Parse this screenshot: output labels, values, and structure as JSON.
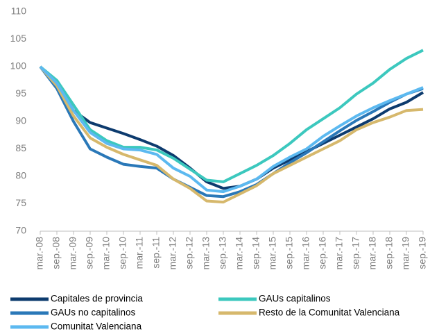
{
  "chart_data": {
    "type": "line",
    "categories": [
      "mar.-08",
      "sep.-08",
      "mar.-09",
      "sep.-09",
      "mar.-10",
      "sep.-10",
      "mar.-11",
      "sep.-11",
      "mar.-12",
      "sep.-12",
      "mar.-13",
      "sep.-13",
      "mar.-14",
      "sep.-14",
      "mar.-15",
      "sep.-15",
      "mar.-16",
      "sep.-16",
      "mar.-17",
      "sep.-17",
      "mar.-18",
      "sep.-18",
      "mar.-19",
      "sep.-19"
    ],
    "series": [
      {
        "name": "Capitales de provincia",
        "color": "#0d3b6e",
        "values": [
          100,
          97,
          92,
          89.8,
          88.8,
          87.8,
          86.7,
          85.5,
          83.8,
          81.5,
          79,
          77.8,
          78.2,
          79.5,
          81.5,
          83,
          84.5,
          86,
          87.5,
          89,
          90.5,
          92.3,
          93.5,
          95.3
        ]
      },
      {
        "name": "GAUs capitalinos",
        "color": "#3cc8be",
        "values": [
          100,
          97.5,
          93,
          88.5,
          86.5,
          85.3,
          85.3,
          84.8,
          83.3,
          81.3,
          79.3,
          79,
          80.5,
          82,
          83.8,
          86,
          88.5,
          90.5,
          92.5,
          95,
          97,
          99.5,
          101.5,
          103
        ]
      },
      {
        "name": "GAUs no capitalinos",
        "color": "#2a78b8",
        "values": [
          100,
          96,
          90,
          85,
          83.5,
          82.2,
          81.8,
          81.5,
          79.5,
          78,
          76.5,
          76.3,
          77.2,
          78.5,
          80.5,
          82.5,
          84.3,
          86.3,
          88.3,
          90.2,
          91.8,
          93.5,
          95,
          96
        ]
      },
      {
        "name": "Resto de la Comunitat Valenciana",
        "color": "#d6b86c",
        "values": [
          100,
          96.5,
          91,
          87,
          85.3,
          84,
          83,
          82,
          79.5,
          77.8,
          75.5,
          75.3,
          76.8,
          78.3,
          80.5,
          82,
          83.5,
          85,
          86.5,
          88.5,
          89.8,
          90.8,
          92,
          92.2
        ]
      },
      {
        "name": "Comunitat Valenciana",
        "color": "#5cb9f0",
        "values": [
          100,
          97,
          92,
          88,
          86,
          85,
          84.8,
          84,
          81.5,
          80,
          77.5,
          77.2,
          78.2,
          79.5,
          81.8,
          83.5,
          85,
          87.3,
          89.2,
          91,
          92.5,
          93.8,
          95,
          96.2
        ]
      }
    ],
    "ylim": [
      70,
      110
    ],
    "yticks": [
      70,
      75,
      80,
      85,
      90,
      95,
      100,
      105,
      110
    ],
    "grid": false
  }
}
